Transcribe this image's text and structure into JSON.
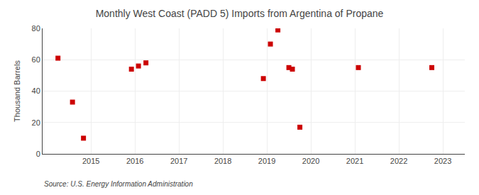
{
  "chart_data": {
    "type": "scatter",
    "title": "Monthly West Coast (PADD 5) Imports from Argentina of Propane",
    "ylabel": "Thousand Barrels",
    "annotations": [
      "Source: U.S. Energy Information Administration"
    ],
    "x": [
      2014.25,
      2014.58,
      2014.83,
      2015.92,
      2016.08,
      2016.25,
      2018.92,
      2019.08,
      2019.25,
      2019.5,
      2019.58,
      2019.75,
      2021.08,
      2022.75
    ],
    "values": [
      61,
      33,
      10,
      54,
      56,
      58,
      48,
      70,
      79,
      55,
      54,
      17,
      55,
      55
    ],
    "color": "#cc0000",
    "marker": "square",
    "xlim": [
      2013.9,
      2023.5
    ],
    "xticks": [
      2015,
      2016,
      2017,
      2018,
      2019,
      2020,
      2021,
      2022,
      2023
    ],
    "ylim": [
      0,
      80
    ],
    "yticks": [
      0,
      20,
      40,
      60,
      80
    ],
    "grid": true
  }
}
